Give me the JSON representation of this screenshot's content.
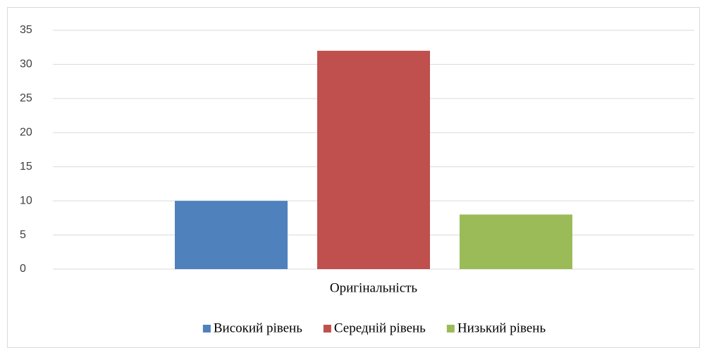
{
  "chart_data": {
    "type": "bar",
    "categories": [
      "Оригінальність"
    ],
    "series": [
      {
        "name": "Високий рівень",
        "color": "#4f81bd",
        "values": [
          10
        ]
      },
      {
        "name": "Середній рівень",
        "color": "#c0504d",
        "values": [
          32
        ]
      },
      {
        "name": "Низький рівень",
        "color": "#9bbb59",
        "values": [
          8
        ]
      }
    ],
    "ylim": [
      0,
      35
    ],
    "yticks": [
      0,
      5,
      10,
      15,
      20,
      25,
      30,
      35
    ],
    "grid": true,
    "legend": "bottom"
  }
}
